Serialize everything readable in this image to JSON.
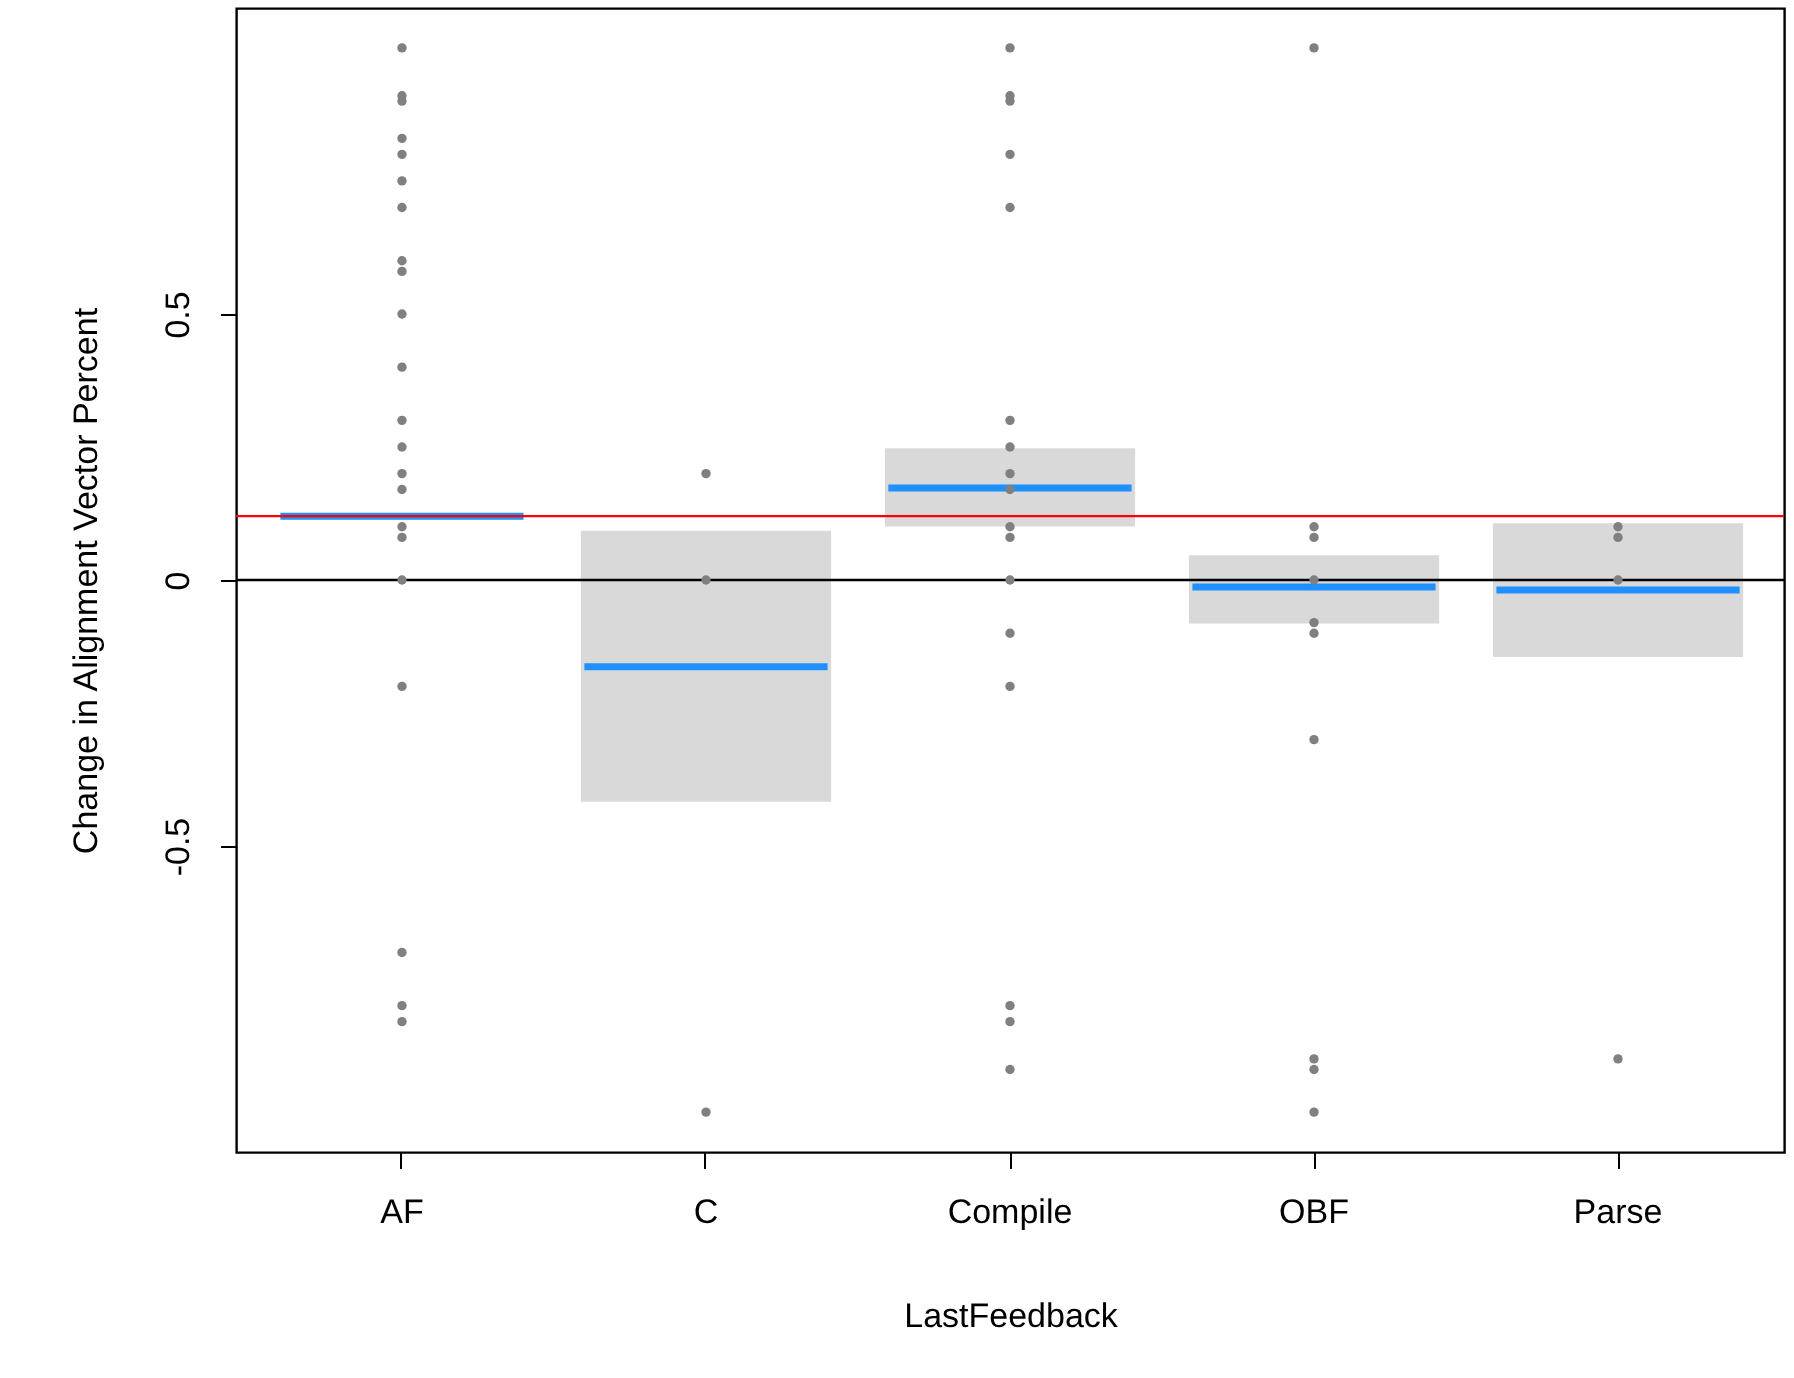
{
  "chart_data": {
    "type": "scatter",
    "xlabel": "LastFeedback",
    "ylabel": "Change in Alignment Vector Percent",
    "categories": [
      "AF",
      "C",
      "Compile",
      "OBF",
      "Parse"
    ],
    "ylim": [
      -1.075,
      1.075
    ],
    "yticks": [
      -0.5,
      0,
      0.5
    ],
    "marker": "circle",
    "ref_lines": [
      {
        "axis": "y",
        "value": 0,
        "color": "#000000"
      },
      {
        "axis": "y",
        "value": 0.12,
        "color": "#ff0000"
      }
    ],
    "series": [
      {
        "type": "bar",
        "color": "#d9d9d9",
        "base": [
          null,
          -0.41,
          0.107,
          -0.075,
          -0.138
        ],
        "values": [
          null,
          0.496,
          0.134,
          0.115,
          0.238
        ]
      },
      {
        "type": "bar",
        "color": "#1e90ff",
        "base": [
          0.12,
          -0.163,
          0.173,
          -0.013,
          -0.019
        ],
        "values": [
          0,
          0,
          0,
          0,
          0
        ]
      },
      {
        "color": "#808080",
        "x": [
          "AF",
          "AF",
          "AF",
          "AF",
          "AF",
          "AF",
          "AF",
          "AF",
          "AF",
          "AF",
          "AF",
          "AF",
          "AF",
          "AF",
          "AF",
          "AF",
          "AF",
          "AF",
          "AF",
          "AF",
          "AF",
          "AF",
          "C",
          "C",
          "C",
          "Compile",
          "Compile",
          "Compile",
          "Compile",
          "Compile",
          "Compile",
          "Compile",
          "Compile",
          "Compile",
          "Compile",
          "Compile",
          "Compile",
          "Compile",
          "Compile",
          "Compile",
          "Compile",
          "Compile",
          "OBF",
          "OBF",
          "OBF",
          "OBF",
          "OBF",
          "OBF",
          "OBF",
          "OBF",
          "OBF",
          "OBF",
          "Parse",
          "Parse",
          "Parse",
          "Parse"
        ],
        "values": [
          1,
          0.91,
          0.9,
          0.83,
          0.8,
          0.75,
          0.7,
          0.6,
          0.58,
          0.5,
          0.4,
          0.3,
          0.25,
          0.2,
          0.17,
          0.1,
          0.08,
          0,
          -0.2,
          -0.7,
          -0.8,
          -0.83,
          0.2,
          0,
          -1,
          1,
          0.91,
          0.9,
          0.8,
          0.7,
          0.3,
          0.25,
          0.2,
          0.17,
          0.1,
          0.08,
          0,
          -0.1,
          -0.2,
          -0.8,
          -0.83,
          -0.92,
          1,
          0.1,
          0.08,
          0,
          -0.08,
          -0.1,
          -0.3,
          -0.9,
          -0.92,
          -1,
          0.1,
          0.08,
          0,
          -0.9
        ]
      }
    ]
  }
}
